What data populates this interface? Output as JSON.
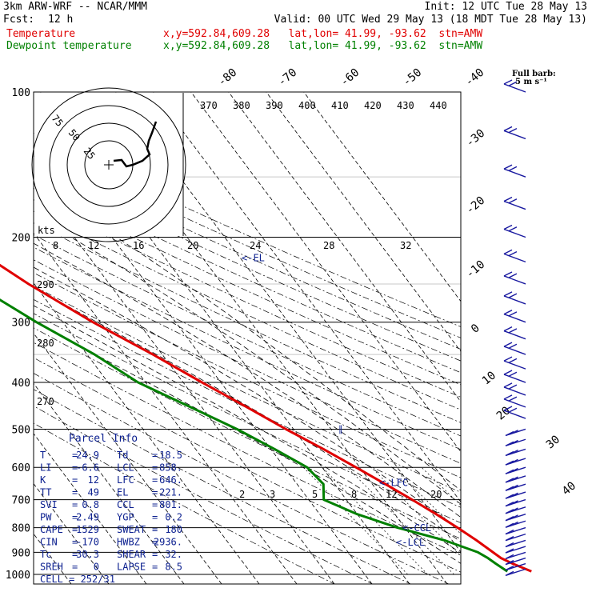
{
  "header": {
    "title": "3km ARW-WRF -- NCAR/MMM",
    "init": "Init: 12 UTC Tue 28 May 13",
    "fcst_label": "Fcst:",
    "fcst_value": "12 h",
    "valid": "Valid: 00 UTC Wed 29 May 13 (18 MDT Tue 28 May 13)",
    "temp_label": "Temperature",
    "temp_loc": "x,y=592.84,609.28   lat,lon= 41.99, -93.62  stn=AMW",
    "dew_label": "Dewpoint temperature",
    "dew_loc": "x,y=592.84,609.28   lat,lon= 41.99, -93.62  stn=AMW"
  },
  "colors": {
    "temperature": "#e00000",
    "dewpoint": "#008000",
    "annotation": "#0b1f8f",
    "barbs": "#1a1aa0"
  },
  "full_barb_label": "Full barb:",
  "full_barb_units": "5 m s⁻¹",
  "hodograph": {
    "units": "kts",
    "ring_labels": [
      "25",
      "50",
      "75"
    ]
  },
  "levels_label": [
    "EL",
    "LFC",
    "CCL",
    "LCL"
  ],
  "parcel_info": {
    "title": "Parcel Info",
    "rows": [
      {
        "k1": "T",
        "v1": "24.9",
        "k2": "Td",
        "v2": "18.5"
      },
      {
        "k1": "LI",
        "v1": "-6.6",
        "k2": "LCL",
        "v2": "858."
      },
      {
        "k1": "K",
        "v1": "12",
        "k2": "LFC",
        "v2": "646."
      },
      {
        "k1": "TT",
        "v1": "49",
        "k2": "EL",
        "v2": "221."
      },
      {
        "k1": "SVI",
        "v1": "0.8",
        "k2": "CCL",
        "v2": "801."
      },
      {
        "k1": "PW",
        "v1": "2.49",
        "k2": "YGP",
        "v2": "0.2"
      },
      {
        "k1": "CAPE",
        "v1": "1529",
        "k2": "SWEAT",
        "v2": "180"
      },
      {
        "k1": "CIN",
        "v1": "-170",
        "k2": "HWBZ",
        "v2": "2936."
      },
      {
        "k1": "Tc",
        "v1": "30.3",
        "k2": "SHEAR",
        "v2": "32."
      },
      {
        "k1": "SREH",
        "v1": "0",
        "k2": "LAPSE",
        "v2": "8.5"
      }
    ],
    "cell_label": "CELL = 252/31"
  },
  "chart_data": {
    "type": "line",
    "title": "",
    "xlabel": "",
    "ylabel": "",
    "y_axis": "pressure (hPa), log scale",
    "pressure_ticks": [
      100,
      200,
      300,
      400,
      500,
      600,
      700,
      800,
      900,
      1000
    ],
    "isotherm_labels": [
      "-80",
      "-70",
      "-60",
      "-50",
      "-40",
      "-30",
      "-20",
      "-10",
      "0",
      "10",
      "20",
      "30",
      "40"
    ],
    "theta_labels": [
      "370",
      "380",
      "390",
      "400",
      "410",
      "420",
      "430",
      "440"
    ],
    "dry_adiabat_labels": [
      "290",
      "280",
      "270"
    ],
    "hodo_speed_labels": [
      "8",
      "12",
      "16",
      "20",
      "24",
      "28",
      "32"
    ],
    "mixing_ratio_labels": [
      "2",
      "3",
      "5",
      "8",
      "12",
      "20"
    ],
    "series": [
      {
        "name": "Temperature",
        "points": [
          {
            "p": 986,
            "t": 24.9
          },
          {
            "p": 950,
            "t": 21.5
          },
          {
            "p": 925,
            "t": 19.5
          },
          {
            "p": 900,
            "t": 18.5
          },
          {
            "p": 850,
            "t": 16.5
          },
          {
            "p": 800,
            "t": 14.0
          },
          {
            "p": 750,
            "t": 11.0
          },
          {
            "p": 700,
            "t": 7.5
          },
          {
            "p": 650,
            "t": 3.5
          },
          {
            "p": 600,
            "t": -1.0
          },
          {
            "p": 550,
            "t": -6.0
          },
          {
            "p": 500,
            "t": -12.0
          },
          {
            "p": 450,
            "t": -18.0
          },
          {
            "p": 400,
            "t": -25.0
          },
          {
            "p": 350,
            "t": -32.5
          },
          {
            "p": 300,
            "t": -42.0
          },
          {
            "p": 250,
            "t": -51.5
          },
          {
            "p": 220,
            "t": -57.0
          },
          {
            "p": 200,
            "t": -59.0
          },
          {
            "p": 175,
            "t": -60.0
          },
          {
            "p": 150,
            "t": -61.0
          },
          {
            "p": 125,
            "t": -62.5
          },
          {
            "p": 100,
            "t": -66.0
          }
        ]
      },
      {
        "name": "Dewpoint temperature",
        "points": [
          {
            "p": 986,
            "t": 18.5
          },
          {
            "p": 950,
            "t": 17.0
          },
          {
            "p": 925,
            "t": 16.0
          },
          {
            "p": 900,
            "t": 14.5
          },
          {
            "p": 850,
            "t": 8.0
          },
          {
            "p": 800,
            "t": -2.0
          },
          {
            "p": 750,
            "t": -10.0
          },
          {
            "p": 700,
            "t": -16.0
          },
          {
            "p": 650,
            "t": -13.0
          },
          {
            "p": 600,
            "t": -14.0
          },
          {
            "p": 550,
            "t": -19.0
          },
          {
            "p": 500,
            "t": -25.0
          },
          {
            "p": 450,
            "t": -33.0
          },
          {
            "p": 400,
            "t": -42.0
          },
          {
            "p": 350,
            "t": -48.0
          },
          {
            "p": 300,
            "t": -57.0
          },
          {
            "p": 250,
            "t": -66.0
          },
          {
            "p": 200,
            "t": -70.0
          },
          {
            "p": 175,
            "t": -74.0
          },
          {
            "p": 150,
            "t": -79.0
          },
          {
            "p": 125,
            "t": -77.0
          },
          {
            "p": 100,
            "t": -76.0
          }
        ]
      }
    ],
    "annotations": [
      {
        "label": "EL",
        "p": 221
      },
      {
        "label": "LFC",
        "p": 646
      },
      {
        "label": "CCL",
        "p": 801
      },
      {
        "label": "LCL",
        "p": 858
      }
    ]
  }
}
